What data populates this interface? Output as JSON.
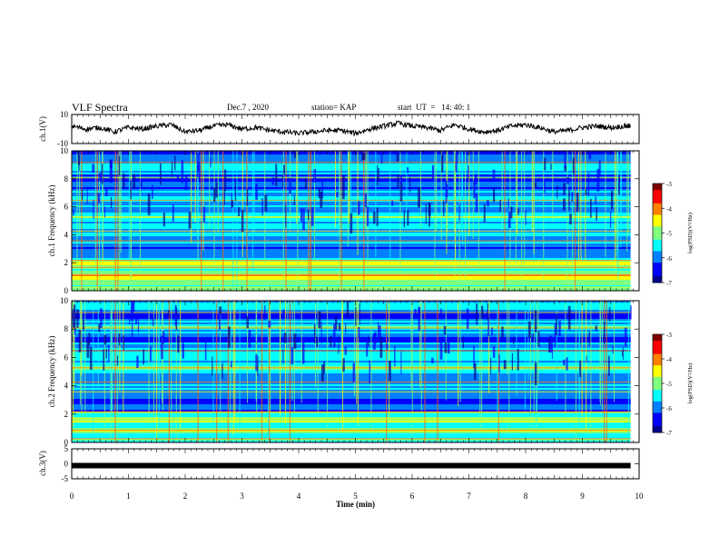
{
  "header": {
    "title": "VLF Spectra",
    "date": "Dec.7 , 2020",
    "station": "station= KAP",
    "start": "start  UT  =   14: 40: 1"
  },
  "colors": {
    "waveform": "#000000",
    "colormap": [
      "#00008f",
      "#0000ff",
      "#0080ff",
      "#00ffff",
      "#80ff80",
      "#ffff00",
      "#ff8000",
      "#ff0000",
      "#800000"
    ]
  },
  "chart_data": [
    {
      "type": "line",
      "name": "ch1-waveform",
      "ylabel": "ch.1(V)",
      "ylim": [
        -10,
        10
      ],
      "yticks": [
        "10",
        "-10"
      ],
      "xlim": [
        0,
        10
      ],
      "x": [
        0,
        0.25,
        0.5,
        0.75,
        1,
        1.25,
        1.5,
        1.75,
        2,
        2.25,
        2.5,
        2.75,
        3,
        3.25,
        3.5,
        3.75,
        4,
        4.25,
        4.5,
        4.75,
        5,
        5.25,
        5.5,
        5.75,
        6,
        6.25,
        6.5,
        6.75,
        7,
        7.25,
        7.5,
        7.75,
        8,
        8.25,
        8.5,
        8.75,
        9,
        9.25,
        9.5,
        9.75,
        9.85
      ],
      "y": [
        2,
        0,
        1,
        -2,
        1,
        0,
        2,
        3,
        -2,
        -1,
        2,
        3,
        0,
        1,
        -1,
        -2,
        -3,
        -2,
        -1,
        -1,
        -3,
        0,
        2,
        4,
        2,
        1,
        -1,
        3,
        0,
        -2,
        -1,
        2,
        3,
        1,
        -2,
        -1,
        1,
        2,
        1,
        2,
        2
      ]
    },
    {
      "type": "heatmap",
      "name": "ch1-spectrogram",
      "ylabel": "ch.1 Frequency (kHz)",
      "ylim": [
        0,
        10
      ],
      "yticks": [
        "0",
        "2",
        "4",
        "6",
        "8",
        "10"
      ],
      "xlim": [
        0,
        10
      ],
      "colorbar": {
        "label": "log(PSD)(V²/Hz)",
        "range": [
          -7,
          -3
        ],
        "ticks": [
          "-3",
          "-4",
          "-5",
          "-6",
          "-7"
        ]
      }
    },
    {
      "type": "heatmap",
      "name": "ch2-spectrogram",
      "ylabel": "ch.2 Frequency (kHz)",
      "ylim": [
        0,
        10
      ],
      "yticks": [
        "0",
        "2",
        "4",
        "6",
        "8",
        "10"
      ],
      "xlim": [
        0,
        10
      ],
      "colorbar": {
        "label": "log(PSD)(V²/Hz)",
        "range": [
          -7,
          -3
        ],
        "ticks": [
          "-3",
          "-4",
          "-5",
          "-6",
          "-7"
        ]
      }
    },
    {
      "type": "line",
      "name": "ch3-waveform",
      "ylabel": "ch.3(V)",
      "ylim": [
        -5,
        5
      ],
      "yticks": [
        "5",
        "0",
        "-5"
      ],
      "xlim": [
        0,
        10
      ],
      "x": [
        0,
        9.85
      ],
      "y": [
        -0.6,
        -0.6
      ]
    }
  ],
  "xaxis": {
    "label": "Time  (min)",
    "ticks": [
      "0",
      "1",
      "2",
      "3",
      "4",
      "5",
      "6",
      "7",
      "8",
      "9",
      "10"
    ]
  }
}
